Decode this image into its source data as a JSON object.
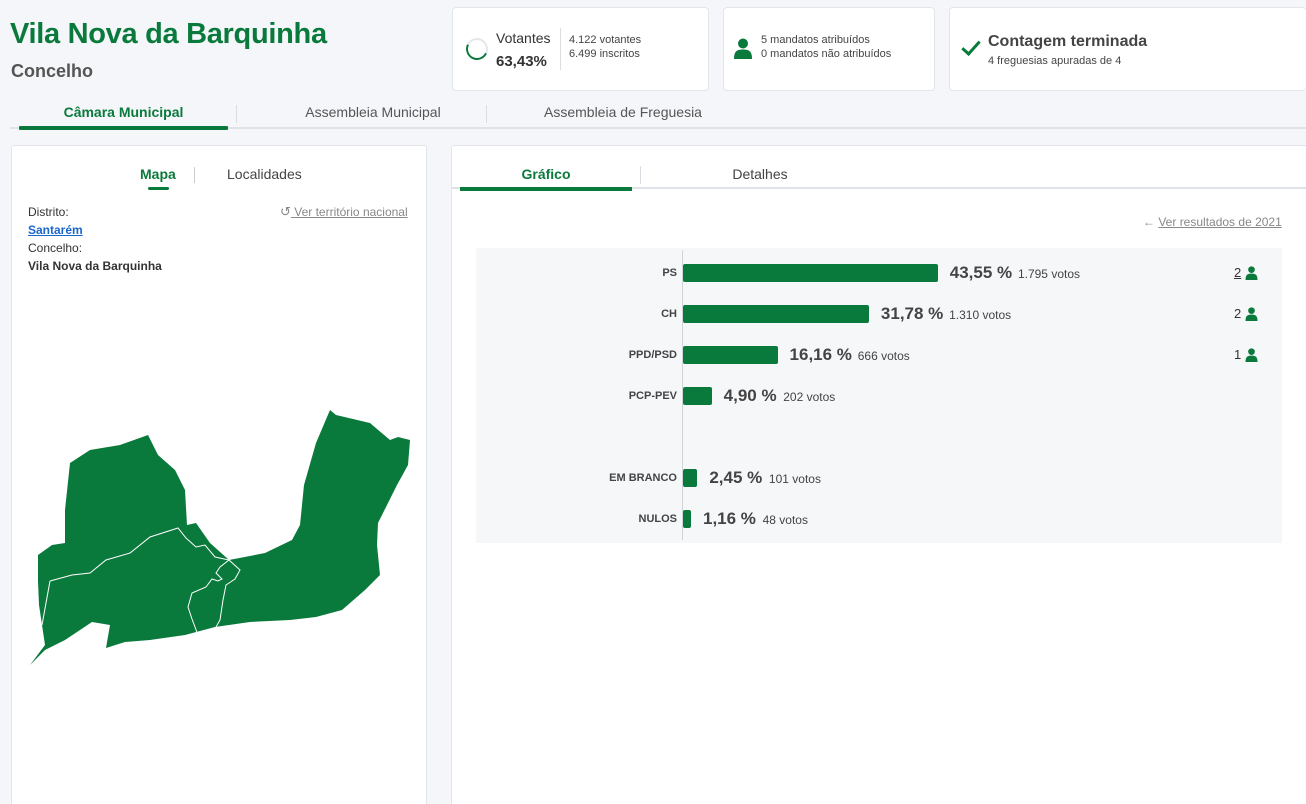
{
  "header": {
    "title": "Vila Nova da Barquinha",
    "subtitle": "Concelho"
  },
  "cards": {
    "voters": {
      "label": "Votantes",
      "percent": "63,43%",
      "votes": "4.122 votantes",
      "registered": "6.499 inscritos",
      "progress_fraction": 0.6343
    },
    "mandates": {
      "assigned": "5 mandatos atribuídos",
      "unassigned": "0 mandatos não atribuídos"
    },
    "count": {
      "title": "Contagem terminada",
      "subtitle": "4 freguesias apuradas de 4"
    }
  },
  "main_tabs": [
    {
      "label": "Câmara Municipal",
      "active": true
    },
    {
      "label": "Assembleia Municipal",
      "active": false
    },
    {
      "label": "Assembleia de Freguesia",
      "active": false
    }
  ],
  "left_panel": {
    "tabs": [
      {
        "label": "Mapa",
        "active": true
      },
      {
        "label": "Localidades",
        "active": false
      }
    ],
    "district_label": "Distrito:",
    "district_value": "Santarém",
    "county_label": "Concelho:",
    "county_value": "Vila Nova da Barquinha",
    "national_link": "Ver território nacional"
  },
  "right_panel": {
    "tabs": [
      {
        "label": "Gráfico",
        "active": true
      },
      {
        "label": "Detalhes",
        "active": false
      }
    ],
    "previous_results_link": "Ver resultados de 2021"
  },
  "colors": {
    "accent": "#0a7a3c",
    "link": "#1a66cc"
  },
  "chart_data": {
    "type": "bar",
    "orientation": "horizontal",
    "categories": [
      "PS",
      "CH",
      "PPD/PSD",
      "PCP-PEV",
      "EM BRANCO",
      "NULOS"
    ],
    "values": [
      43.55,
      31.78,
      16.16,
      4.9,
      2.45,
      1.16
    ],
    "value_labels": [
      "43,55 %",
      "31,78 %",
      "16,16 %",
      "4,90 %",
      "2,45 %",
      "1,16 %"
    ],
    "votes": [
      "1.795 votos",
      "1.310 votos",
      "666 votos",
      "202 votos",
      "101 votos",
      "48 votos"
    ],
    "seats": [
      "2",
      "2",
      "1",
      "",
      "",
      ""
    ]
  }
}
